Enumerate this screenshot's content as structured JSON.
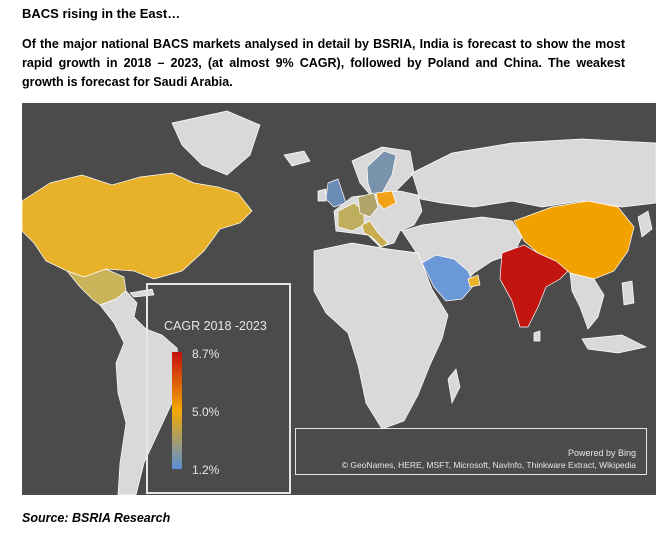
{
  "headline": "BACS rising in the East…",
  "intro": "Of the major national BACS markets analysed in detail by BSRIA, India is forecast to show the most rapid growth in 2018 – 2023, (at almost 9% CAGR), followed by Poland and China. The weakest growth is forecast for Saudi Arabia.",
  "legend": {
    "title": "CAGR  2018 -2023",
    "max_label": "8.7%",
    "mid_label": "5.0%",
    "min_label": "1.2%",
    "colors": {
      "high": "#c40f0f",
      "mid": "#f2a900",
      "low": "#5a8fd6"
    }
  },
  "countries": [
    {
      "name": "North America",
      "color": "#e8b12a"
    },
    {
      "name": "Mexico",
      "color": "#c9b45a"
    },
    {
      "name": "Sweden",
      "color": "#7a93ad"
    },
    {
      "name": "United Kingdom",
      "color": "#6a8bb5"
    },
    {
      "name": "Poland",
      "color": "#f0a316"
    },
    {
      "name": "Germany",
      "color": "#b0a66a"
    },
    {
      "name": "France",
      "color": "#bfae5e"
    },
    {
      "name": "Italy",
      "color": "#c8ad4e"
    },
    {
      "name": "Saudi Arabia",
      "color": "#6b98d6"
    },
    {
      "name": "United Arab Emirates",
      "color": "#e9b22a"
    },
    {
      "name": "India",
      "color": "#c3150f"
    },
    {
      "name": "China",
      "color": "#f2a200"
    }
  ],
  "attribution": {
    "powered_by": "Powered by Bing",
    "credits": "© GeoNames, HERE, MSFT, Microsoft, NavInfo, Thinkware Extract, Wikipedia"
  },
  "source": "Source: BSRIA Research"
}
